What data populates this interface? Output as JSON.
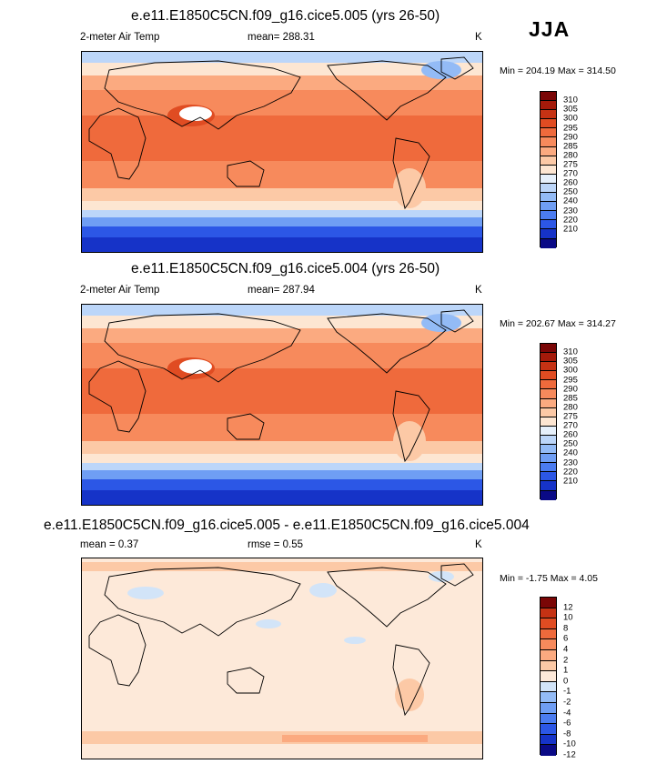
{
  "season": "JJA",
  "colors": {
    "temp_scale": [
      "#0a0a86",
      "#1633c8",
      "#2c57e6",
      "#4b7cf0",
      "#6f9ef4",
      "#93bbf6",
      "#bcd6f9",
      "#e6f0fb",
      "#fde6d2",
      "#fcc9a6",
      "#fbaa80",
      "#f78a5c",
      "#ef6a3c",
      "#e04c22",
      "#c53214",
      "#a41a0a",
      "#7a0606"
    ],
    "diff_scale": [
      "#0a0a86",
      "#1633c8",
      "#2c57e6",
      "#4b7cf0",
      "#6f9ef4",
      "#93bbf6",
      "#d2e4f8",
      "#fde9d9",
      "#fcc9a6",
      "#fbaa80",
      "#f78a5c",
      "#ef6a3c",
      "#e04c22",
      "#c53214",
      "#7a0606"
    ]
  },
  "panels": [
    {
      "title": "e.e11.E1850C5CN.f09_g16.cice5.005 (yrs 26-50)",
      "variable": "2-meter Air Temp",
      "mean_label": "mean= 288.31",
      "units": "K",
      "minmax": "Min = 204.19 Max = 314.50",
      "colorbar_ticks": [
        "310",
        "305",
        "300",
        "295",
        "290",
        "285",
        "280",
        "275",
        "270",
        "260",
        "250",
        "240",
        "230",
        "220",
        "210"
      ]
    },
    {
      "title": "e.e11.E1850C5CN.f09_g16.cice5.004 (yrs 26-50)",
      "variable": "2-meter Air Temp",
      "mean_label": "mean= 287.94",
      "units": "K",
      "minmax": "Min = 202.67 Max = 314.27",
      "colorbar_ticks": [
        "310",
        "305",
        "300",
        "295",
        "290",
        "285",
        "280",
        "275",
        "270",
        "260",
        "250",
        "240",
        "230",
        "220",
        "210"
      ]
    },
    {
      "title": "e.e11.E1850C5CN.f09_g16.cice5.005 - e.e11.E1850C5CN.f09_g16.cice5.004",
      "mean_label": "mean =   0.37",
      "rmse_label": "rmse =   0.55",
      "units": "K",
      "minmax": "Min =  -1.75 Max =   4.05",
      "colorbar_ticks": [
        "12",
        "10",
        "8",
        "6",
        "4",
        "2",
        "1",
        "0",
        "-1",
        "-2",
        "-4",
        "-6",
        "-8",
        "-10",
        "-12"
      ]
    }
  ]
}
